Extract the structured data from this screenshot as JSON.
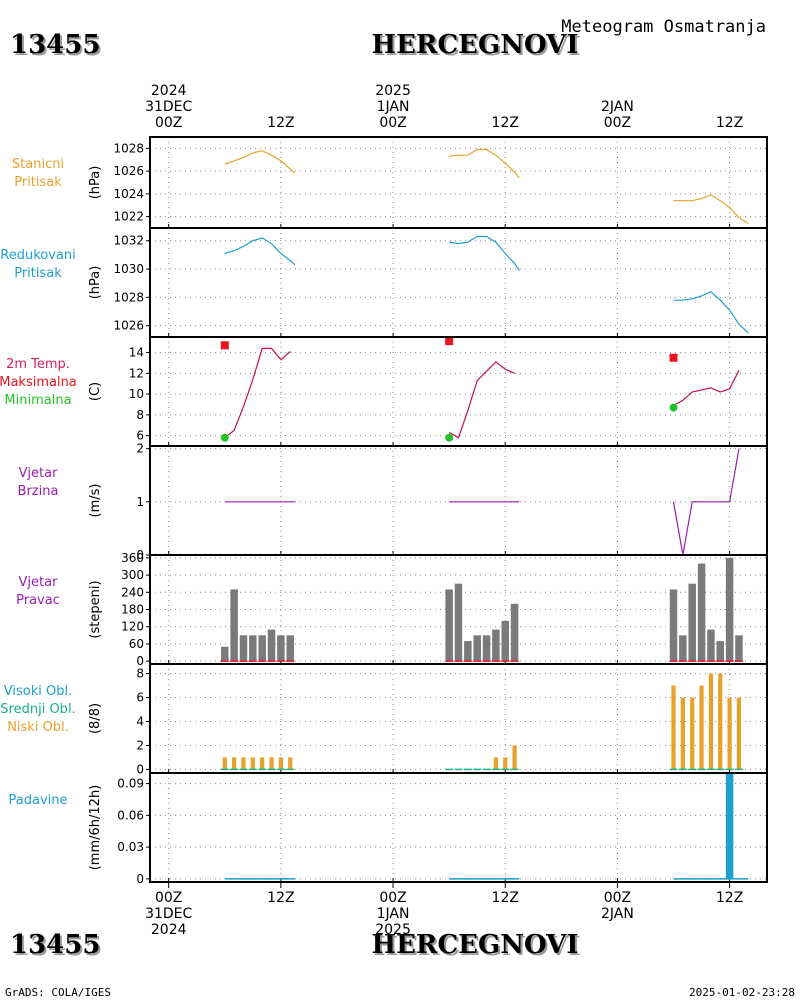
{
  "header": {
    "station_id": "13455",
    "station_name": "HERCEGNOVI",
    "subtitle": "Meteogram Osmatranja"
  },
  "footer": {
    "credit": "GrADS: COLA/IGES",
    "timestamp": "2025-01-02-23:28"
  },
  "axis": {
    "x_range_hours": [
      -2,
      64
    ],
    "top_labels": [
      {
        "hour": 0,
        "lines": [
          "2024",
          "31DEC",
          "00Z"
        ]
      },
      {
        "hour": 12,
        "lines": [
          "12Z"
        ]
      },
      {
        "hour": 24,
        "lines": [
          "2025",
          "1JAN",
          "00Z"
        ]
      },
      {
        "hour": 36,
        "lines": [
          "12Z"
        ]
      },
      {
        "hour": 48,
        "lines": [
          "2JAN",
          "00Z"
        ]
      },
      {
        "hour": 60,
        "lines": [
          "12Z"
        ]
      }
    ],
    "bottom_labels": [
      {
        "hour": 0,
        "lines": [
          "00Z",
          "31DEC",
          "2024"
        ]
      },
      {
        "hour": 12,
        "lines": [
          "12Z"
        ]
      },
      {
        "hour": 24,
        "lines": [
          "00Z",
          "1JAN",
          "2025"
        ]
      },
      {
        "hour": 36,
        "lines": [
          "12Z"
        ]
      },
      {
        "hour": 48,
        "lines": [
          "00Z",
          "2JAN"
        ]
      },
      {
        "hour": 60,
        "lines": [
          "12Z"
        ]
      }
    ],
    "vgrid_hours": [
      0,
      12,
      24,
      36,
      48,
      60
    ]
  },
  "chart_data": [
    {
      "id": "stanicni",
      "type": "line",
      "labels": [
        {
          "text": "Stanicni",
          "color": "#e8a22a"
        },
        {
          "text": "Pritisak",
          "color": "#e8a22a"
        }
      ],
      "ylabel": "(hPa)",
      "ylim": [
        1021,
        1029
      ],
      "yticks": [
        1022,
        1024,
        1026,
        1028
      ],
      "grid": true,
      "series": [
        {
          "color": "#e8a22a",
          "segments": [
            [
              [
                6,
                1026.6
              ],
              [
                7,
                1026.9
              ],
              [
                8,
                1027.2
              ],
              [
                9,
                1027.6
              ],
              [
                10,
                1027.8
              ],
              [
                11,
                1027.4
              ],
              [
                12,
                1026.9
              ],
              [
                13,
                1026.2
              ],
              [
                13.5,
                1025.8
              ]
            ],
            [
              [
                30,
                1027.3
              ],
              [
                31,
                1027.4
              ],
              [
                32,
                1027.4
              ],
              [
                33,
                1027.9
              ],
              [
                34,
                1027.9
              ],
              [
                35,
                1027.4
              ],
              [
                36,
                1026.7
              ],
              [
                37,
                1025.9
              ],
              [
                37.5,
                1025.4
              ]
            ],
            [
              [
                54,
                1023.4
              ],
              [
                55,
                1023.4
              ],
              [
                56,
                1023.4
              ],
              [
                57,
                1023.6
              ],
              [
                58,
                1023.9
              ],
              [
                59,
                1023.4
              ],
              [
                60,
                1022.8
              ],
              [
                61,
                1021.9
              ],
              [
                62,
                1021.4
              ]
            ]
          ]
        }
      ]
    },
    {
      "id": "redukovani",
      "type": "line",
      "labels": [
        {
          "text": "Redukovani",
          "color": "#1e9fd0"
        },
        {
          "text": "Pritisak",
          "color": "#1e9fd0"
        }
      ],
      "ylabel": "(hPa)",
      "ylim": [
        1025.2,
        1032.9
      ],
      "yticks": [
        1026,
        1028,
        1030,
        1032
      ],
      "grid": true,
      "series": [
        {
          "color": "#1e9fd0",
          "segments": [
            [
              [
                6,
                1031.1
              ],
              [
                7,
                1031.3
              ],
              [
                8,
                1031.6
              ],
              [
                9,
                1032.0
              ],
              [
                10,
                1032.2
              ],
              [
                11,
                1031.8
              ],
              [
                12,
                1031.1
              ],
              [
                13,
                1030.6
              ],
              [
                13.5,
                1030.3
              ]
            ],
            [
              [
                30,
                1031.9
              ],
              [
                31,
                1031.8
              ],
              [
                32,
                1031.9
              ],
              [
                33,
                1032.3
              ],
              [
                34,
                1032.3
              ],
              [
                35,
                1031.9
              ],
              [
                36,
                1031.1
              ],
              [
                37,
                1030.4
              ],
              [
                37.5,
                1029.9
              ]
            ],
            [
              [
                54,
                1027.8
              ],
              [
                55,
                1027.8
              ],
              [
                56,
                1027.9
              ],
              [
                57,
                1028.1
              ],
              [
                58,
                1028.4
              ],
              [
                59,
                1027.8
              ],
              [
                60,
                1027.1
              ],
              [
                61,
                1026.1
              ],
              [
                62,
                1025.5
              ]
            ]
          ]
        }
      ]
    },
    {
      "id": "temp",
      "type": "line",
      "labels": [
        {
          "text": "2m Temp.",
          "color": "#d81e5b"
        },
        {
          "text": "Maksimalna",
          "color": "#e8141e"
        },
        {
          "text": "Minimalna",
          "color": "#22c425"
        }
      ],
      "ylabel": "(C)",
      "ylim": [
        5,
        15.5
      ],
      "yticks": [
        6,
        8,
        10,
        12,
        14
      ],
      "grid": true,
      "series": [
        {
          "color": "#c8104f",
          "segments": [
            [
              [
                6,
                5.8
              ],
              [
                7,
                6.5
              ],
              [
                8,
                8.8
              ],
              [
                9,
                11.4
              ],
              [
                10,
                14.4
              ],
              [
                11,
                14.4
              ],
              [
                12,
                13.3
              ],
              [
                13,
                14.1
              ]
            ],
            [
              [
                30,
                6.3
              ],
              [
                31,
                5.8
              ],
              [
                32,
                8.4
              ],
              [
                33,
                11.3
              ],
              [
                34,
                12.2
              ],
              [
                35,
                13.1
              ],
              [
                36,
                12.4
              ],
              [
                37,
                12.0
              ]
            ],
            [
              [
                54,
                8.9
              ],
              [
                55,
                9.4
              ],
              [
                56,
                10.2
              ],
              [
                57,
                10.4
              ],
              [
                58,
                10.6
              ],
              [
                59,
                10.2
              ],
              [
                60,
                10.5
              ],
              [
                61,
                12.3
              ]
            ]
          ]
        }
      ],
      "maximum": [
        {
          "x": 6,
          "y": 14.7
        },
        {
          "x": 30,
          "y": 15.1
        },
        {
          "x": 54,
          "y": 13.5
        }
      ],
      "minimum": [
        {
          "x": 6,
          "y": 5.8
        },
        {
          "x": 30,
          "y": 5.8
        },
        {
          "x": 54,
          "y": 8.7
        }
      ],
      "max_color": "#e8141e",
      "min_color": "#22c425"
    },
    {
      "id": "brzina",
      "type": "line",
      "labels": [
        {
          "text": "Vjetar",
          "color": "#9a1fb0"
        },
        {
          "text": "Brzina",
          "color": "#9a1fb0"
        }
      ],
      "ylabel": "(m/s)",
      "ylim": [
        0,
        2.05
      ],
      "yticks": [
        0,
        1,
        2
      ],
      "grid": true,
      "series": [
        {
          "color": "#9a1fb0",
          "segments": [
            [
              [
                6,
                1
              ],
              [
                13.5,
                1
              ]
            ],
            [
              [
                30,
                1
              ],
              [
                37.5,
                1
              ]
            ],
            [
              [
                54,
                1
              ],
              [
                55,
                0
              ],
              [
                56,
                1
              ],
              [
                57,
                1
              ],
              [
                58,
                1
              ],
              [
                59,
                1
              ],
              [
                60,
                1
              ],
              [
                61,
                2
              ]
            ]
          ]
        }
      ]
    },
    {
      "id": "pravac",
      "type": "bar",
      "labels": [
        {
          "text": "Vjetar",
          "color": "#9a1fb0"
        },
        {
          "text": "Pravac",
          "color": "#9a1fb0"
        }
      ],
      "ylabel": "(stepeni)",
      "ylim": [
        -10,
        370
      ],
      "yticks": [
        0,
        60,
        120,
        180,
        240,
        300,
        360
      ],
      "grid": true,
      "bar_color": "#7a7a7a",
      "bar_width_hours": 0.8,
      "x": [
        6,
        7,
        8,
        9,
        10,
        11,
        12,
        13,
        30,
        31,
        32,
        33,
        34,
        35,
        36,
        37,
        54,
        55,
        56,
        57,
        58,
        59,
        60,
        61
      ],
      "values": [
        50,
        250,
        90,
        90,
        90,
        110,
        90,
        90,
        250,
        270,
        70,
        90,
        90,
        110,
        140,
        200,
        250,
        90,
        270,
        340,
        110,
        70,
        360,
        90
      ],
      "baseline_color": "#e8141e"
    },
    {
      "id": "oblaci",
      "type": "bar",
      "labels": [
        {
          "text": "Visoki Obl.",
          "color": "#1e9fd0"
        },
        {
          "text": "Srednji Obl.",
          "color": "#1ab08a"
        },
        {
          "text": "Niski Obl.",
          "color": "#e8a22a"
        }
      ],
      "ylabel": "(8/8)",
      "ylim": [
        -0.3,
        8.8
      ],
      "yticks": [
        0,
        2,
        4,
        6,
        8
      ],
      "grid": true,
      "bar_color": "#e8a22a",
      "bar_width_hours": 0.45,
      "x": [
        6,
        7,
        8,
        9,
        10,
        11,
        12,
        13,
        30,
        31,
        32,
        33,
        34,
        35,
        36,
        37,
        54,
        55,
        56,
        57,
        58,
        59,
        60,
        61
      ],
      "values": [
        1,
        1,
        1,
        1,
        1,
        1,
        1,
        1,
        0,
        0,
        0,
        0,
        0,
        1,
        1,
        2,
        7,
        6,
        6,
        7,
        8,
        8,
        6,
        6
      ],
      "baseline_color": "#1ab08a"
    },
    {
      "id": "padavine",
      "type": "bar",
      "labels": [
        {
          "text": "Padavine",
          "color": "#1e9fd0"
        }
      ],
      "ylabel": "(mm/6h/12h)",
      "ylim": [
        -0.003,
        0.1
      ],
      "yticks": [
        0,
        0.03,
        0.06,
        0.09
      ],
      "grid": true,
      "bar_color": "#1e9fd0",
      "bar_width_hours": 0.8,
      "x": [
        60
      ],
      "values": [
        0.1
      ],
      "baseline_segments": [
        [
          6,
          13.5
        ],
        [
          30,
          37.5
        ],
        [
          54,
          62
        ]
      ],
      "baseline_color": "#1e9fd0"
    }
  ]
}
